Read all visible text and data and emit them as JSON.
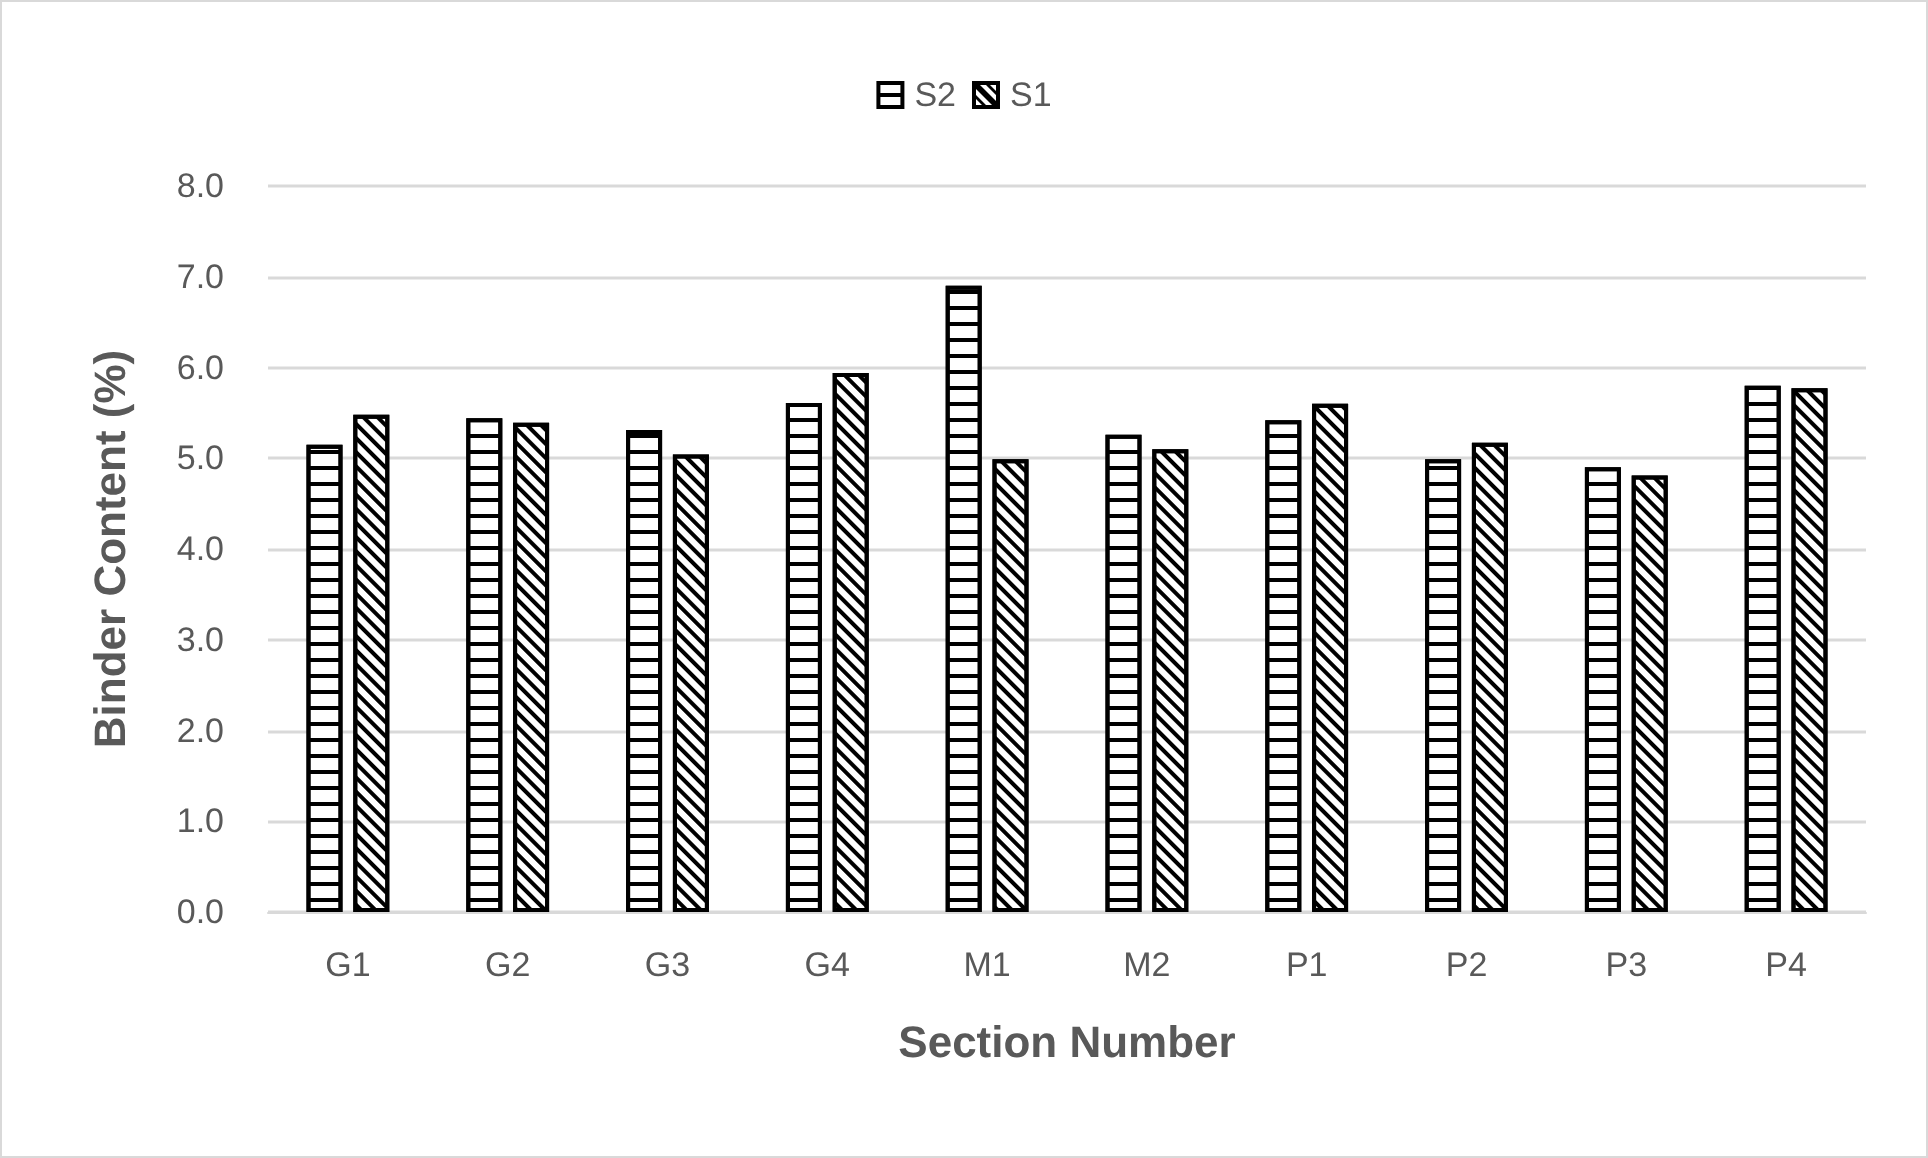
{
  "chart_data": {
    "type": "bar",
    "xlabel": "Section Number",
    "ylabel": "Binder Content (%)",
    "categories": [
      "G1",
      "G2",
      "G3",
      "G4",
      "M1",
      "M2",
      "P1",
      "P2",
      "P3",
      "P4"
    ],
    "series": [
      {
        "name": "S2",
        "color": "#000000",
        "values": [
          5.15,
          5.44,
          5.31,
          5.61,
          6.9,
          5.26,
          5.42,
          4.99,
          4.9,
          5.8
        ]
      },
      {
        "name": "S1",
        "color": "#000000",
        "values": [
          5.48,
          5.39,
          5.04,
          5.94,
          4.99,
          5.1,
          5.6,
          5.17,
          4.81,
          5.77
        ]
      }
    ],
    "ylim": [
      0,
      8
    ],
    "yticks": [
      {
        "value": 0,
        "label": "0.0"
      },
      {
        "value": 1,
        "label": "1.0"
      },
      {
        "value": 2,
        "label": "2.0"
      },
      {
        "value": 3,
        "label": "3.0"
      },
      {
        "value": 4,
        "label": "4.0"
      },
      {
        "value": 5,
        "label": "5.0"
      },
      {
        "value": 6,
        "label": "6.0"
      },
      {
        "value": 7,
        "label": "7.0"
      },
      {
        "value": 8,
        "label": "8.0"
      }
    ],
    "grid": "y",
    "legend": "top"
  }
}
